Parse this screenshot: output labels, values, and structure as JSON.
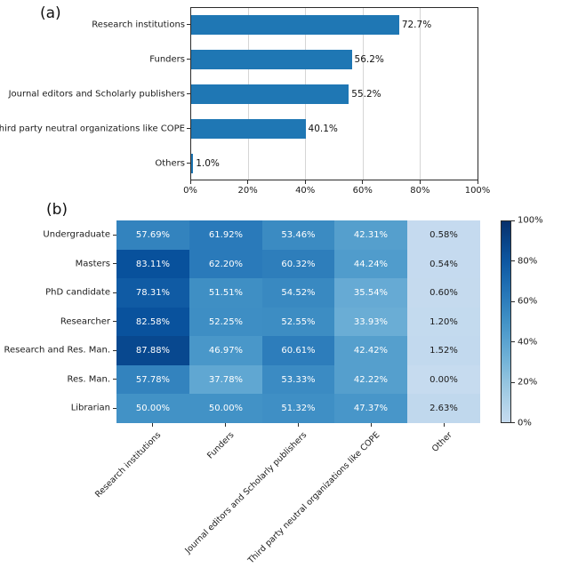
{
  "chart_data": [
    {
      "id": "a",
      "type": "bar",
      "orientation": "horizontal",
      "panel_label": "(a)",
      "categories": [
        "Research institutions",
        "Funders",
        "Journal editors and Scholarly publishers",
        "Third party neutral organizations like COPE",
        "Others"
      ],
      "values": [
        72.7,
        56.2,
        55.2,
        40.1,
        1.0
      ],
      "value_labels": [
        "72.7%",
        "56.2%",
        "55.2%",
        "40.1%",
        "1.0%"
      ],
      "xlim": [
        0,
        100
      ],
      "x_tick_values": [
        0,
        20,
        40,
        60,
        80,
        100
      ],
      "x_tick_labels": [
        "0%",
        "20%",
        "40%",
        "60%",
        "80%",
        "100%"
      ],
      "grid": "vertical-light",
      "bar_color": "#1f77b4",
      "xlabel": "",
      "ylabel": ""
    },
    {
      "id": "b",
      "type": "heatmap",
      "panel_label": "(b)",
      "rows": [
        "Undergraduate",
        "Masters",
        "PhD candidate",
        "Researcher",
        "Research and Res. Man.",
        "Res. Man.",
        "Librarian"
      ],
      "columns": [
        "Research institutions",
        "Funders",
        "Journal editors and Scholarly publishers",
        "Third party neutral organizations like COPE",
        "Other"
      ],
      "values": [
        [
          57.69,
          61.92,
          53.46,
          42.31,
          0.58
        ],
        [
          83.11,
          62.2,
          60.32,
          44.24,
          0.54
        ],
        [
          78.31,
          51.51,
          54.52,
          35.54,
          0.6
        ],
        [
          82.58,
          52.25,
          52.55,
          33.93,
          1.2
        ],
        [
          87.88,
          46.97,
          60.61,
          42.42,
          1.52
        ],
        [
          57.78,
          37.78,
          53.33,
          42.22,
          0.0
        ],
        [
          50.0,
          50.0,
          51.32,
          47.37,
          2.63
        ]
      ],
      "cell_label_suffix": "%",
      "colormap": "Blues",
      "colorbar": {
        "range": [
          0,
          100
        ],
        "tick_values": [
          0,
          20,
          40,
          60,
          80,
          100
        ],
        "tick_labels": [
          "0%",
          "20%",
          "40%",
          "60%",
          "80%",
          "100%"
        ],
        "position": "right"
      }
    }
  ]
}
